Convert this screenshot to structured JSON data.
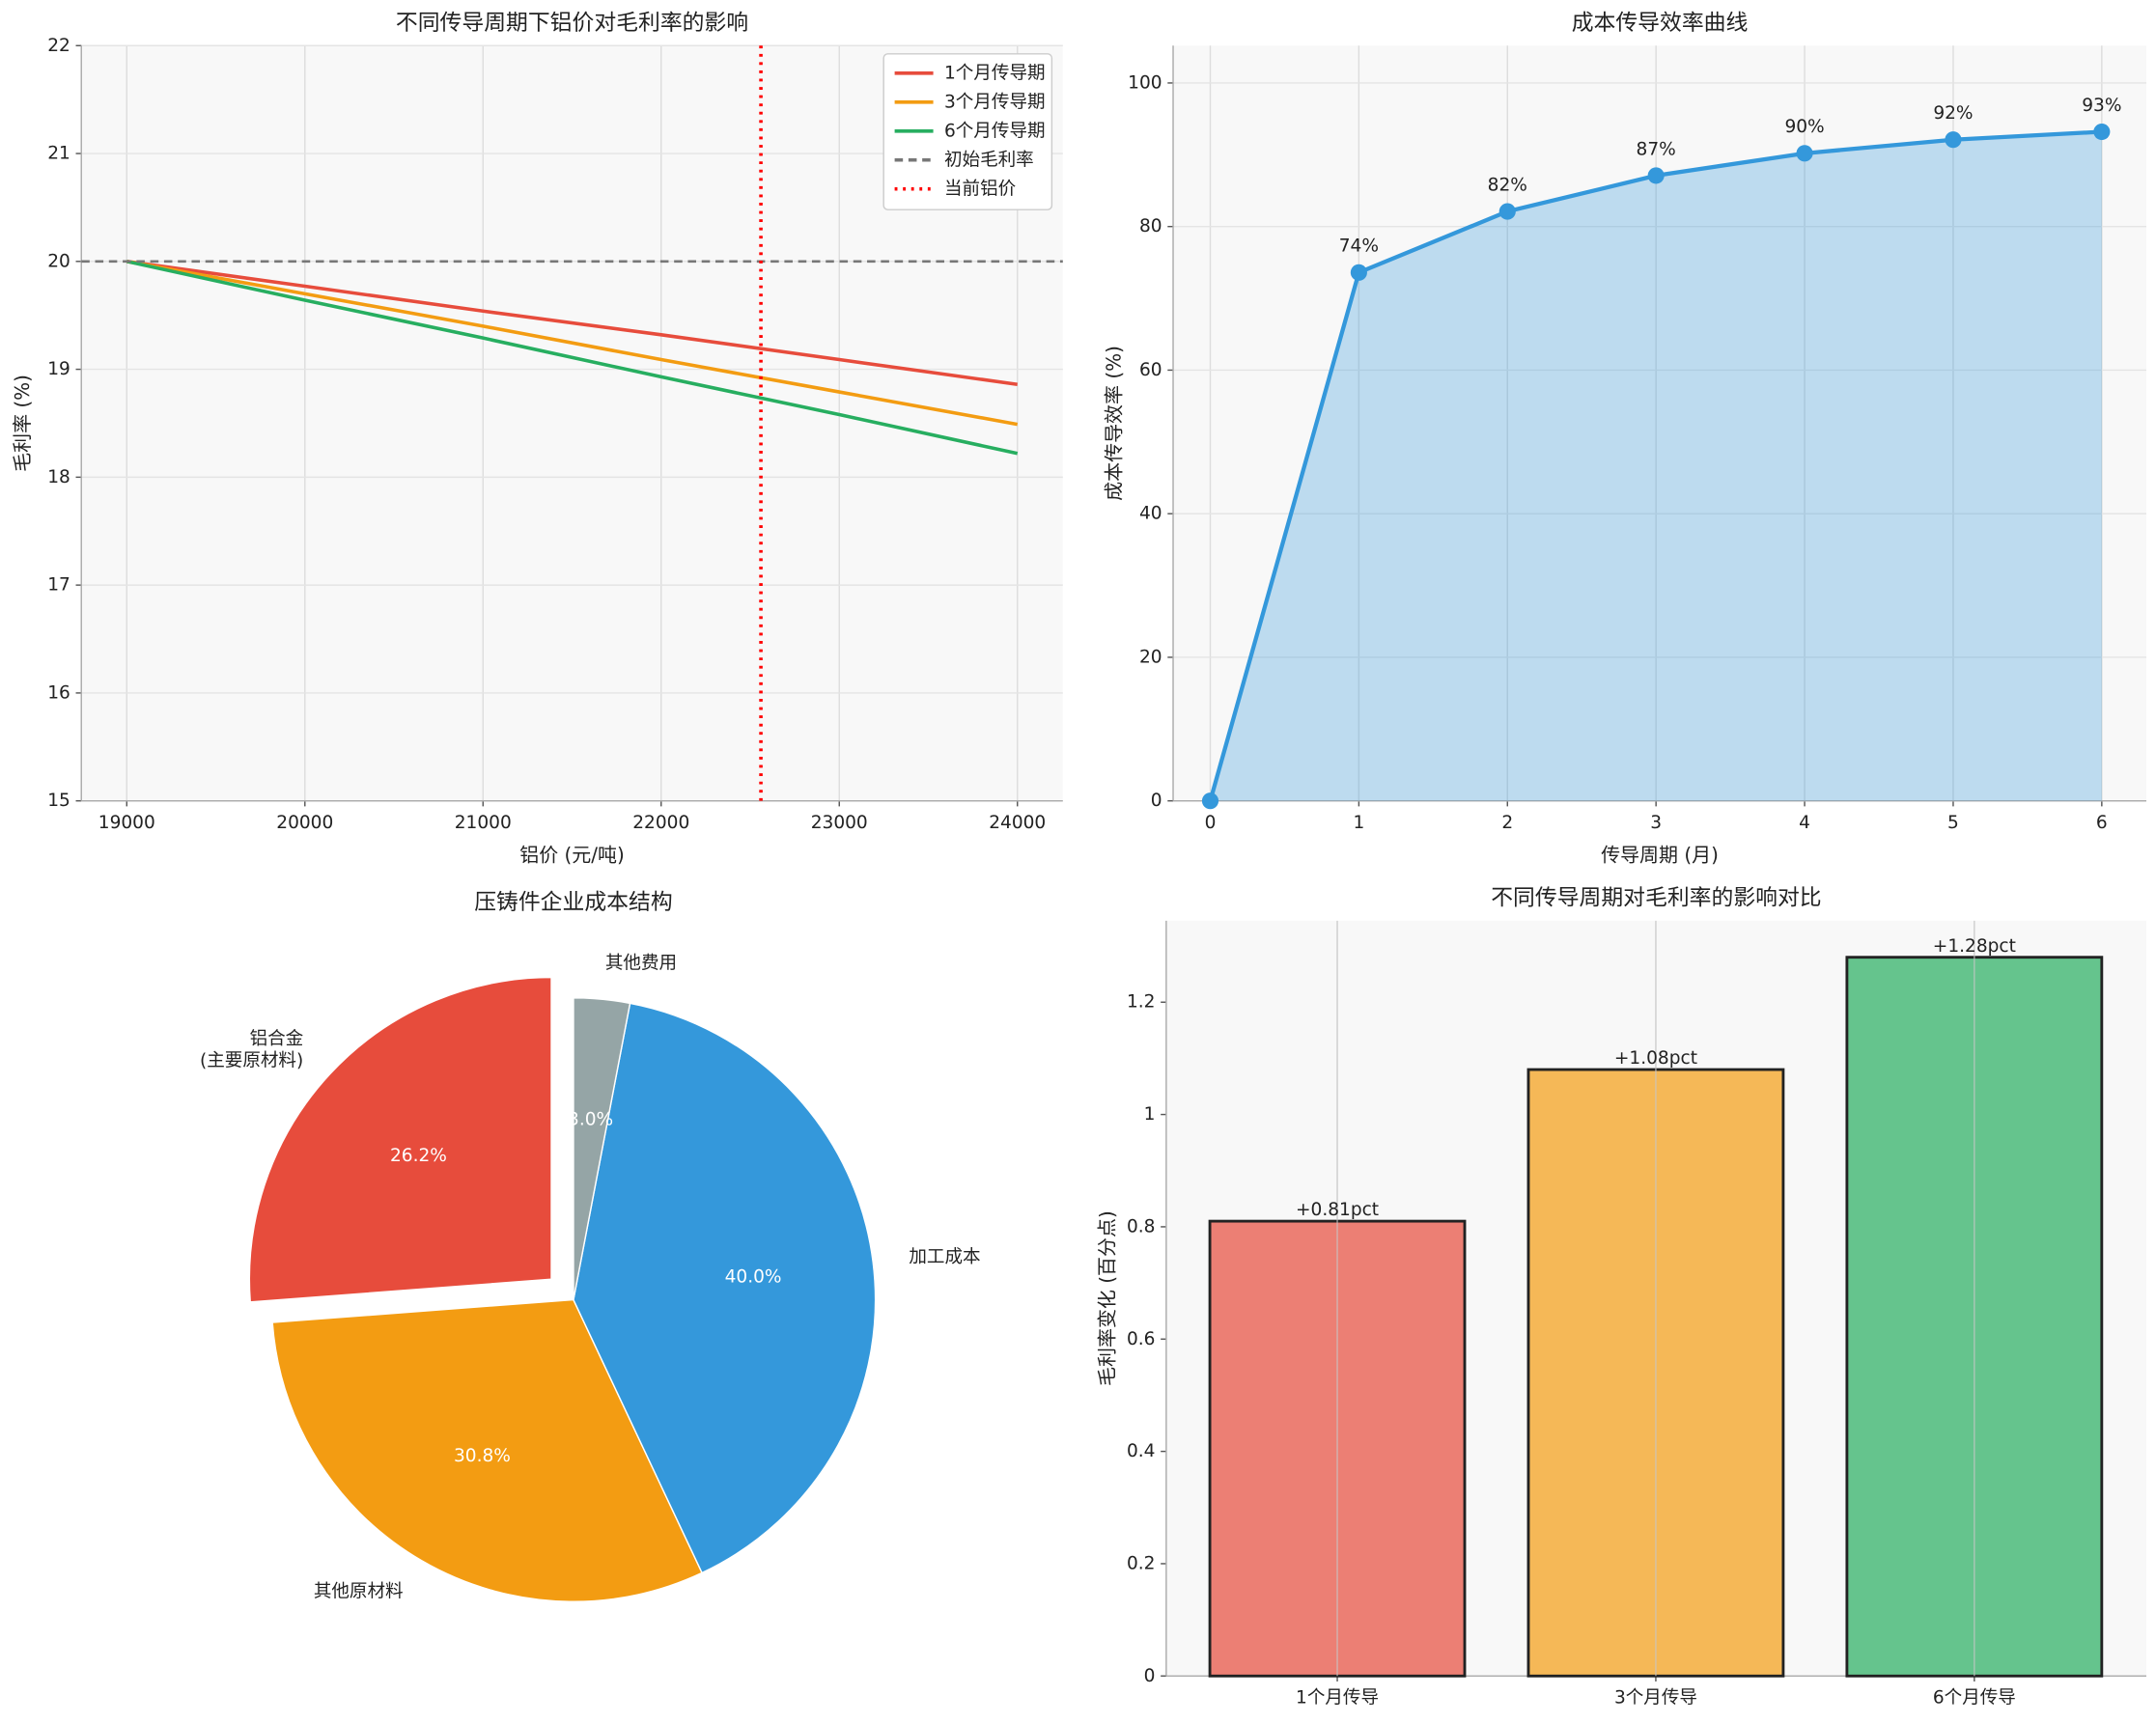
{
  "chart_data": [
    {
      "type": "line",
      "title": "不同传导周期下铝价对毛利率的影响",
      "xlabel": "铝价 (元/吨)",
      "ylabel": "毛利率 (%)",
      "x": [
        19000,
        20000,
        21000,
        22000,
        23000,
        24000
      ],
      "series": [
        {
          "name": "1个月传导期",
          "color": "#e74c3c",
          "values": [
            20,
            19.77,
            19.54,
            19.32,
            19.09,
            18.86
          ]
        },
        {
          "name": "3个月传导期",
          "color": "#f39c12",
          "values": [
            20,
            19.7,
            19.4,
            19.09,
            18.79,
            18.49
          ]
        },
        {
          "name": "6个月传导期",
          "color": "#27ae60",
          "values": [
            20,
            19.64,
            19.29,
            18.93,
            18.58,
            18.22
          ]
        }
      ],
      "hlines": [
        {
          "name": "初始毛利率",
          "value": 20,
          "color": "#777777"
        }
      ],
      "vlines": [
        {
          "name": "当前铝价",
          "value": 22560,
          "color": "#ff0000"
        }
      ],
      "xlim": [
        18745,
        24255
      ],
      "xticks": [
        19000,
        20000,
        21000,
        22000,
        23000,
        24000
      ],
      "ylim": [
        15,
        22
      ],
      "yticks": [
        15,
        16,
        17,
        18,
        19,
        20,
        21,
        22
      ],
      "grid": true,
      "legend": "upper right"
    },
    {
      "type": "area",
      "title": "成本传导效率曲线",
      "xlabel": "传导周期 (月)",
      "ylabel": "成本传导效率 (%)",
      "x": [
        0,
        1,
        2,
        3,
        4,
        5,
        6
      ],
      "values": [
        0,
        73.6,
        82.1,
        87.1,
        90.2,
        92.1,
        93.2
      ],
      "value_labels": [
        null,
        "74%",
        "82%",
        "87%",
        "90%",
        "92%",
        "93%"
      ],
      "color": "#3498db",
      "xlim": [
        -0.25,
        6.3
      ],
      "xticks": [
        0,
        1,
        2,
        3,
        4,
        5,
        6
      ],
      "ylim": [
        0,
        105.2
      ],
      "yticks": [
        0,
        20,
        40,
        60,
        80,
        100
      ],
      "grid": true
    },
    {
      "type": "pie",
      "title": "压铸件企业成本结构",
      "categories": [
        "铝合金\n(主要原材料)",
        "其他原材料",
        "加工成本",
        "其他费用"
      ],
      "values": [
        26.2,
        30.8,
        40.0,
        3.0
      ],
      "value_labels": [
        "26.2%",
        "30.8%",
        "40.0%",
        "3.0%"
      ],
      "colors": [
        "#e74c3c",
        "#f39c12",
        "#3498db",
        "#95a5a6"
      ],
      "explode": [
        0.1,
        0,
        0,
        0
      ]
    },
    {
      "type": "bar",
      "title": "不同传导周期对毛利率的影响对比",
      "ylabel": "毛利率变化 (百分点)",
      "categories": [
        "1个月传导",
        "3个月传导",
        "6个月传导"
      ],
      "values": [
        0.81,
        1.08,
        1.28
      ],
      "value_labels": [
        "+0.81pct",
        "+1.08pct",
        "+1.28pct"
      ],
      "colors": [
        "#e74c3c",
        "#f39c12",
        "#27ae60"
      ],
      "xlim": [
        -0.537,
        2.54
      ],
      "ylim": [
        0,
        1.345
      ],
      "yticks": [
        0,
        0.2,
        0.4,
        0.6,
        0.8,
        1.0,
        1.2
      ],
      "grid": true
    }
  ]
}
